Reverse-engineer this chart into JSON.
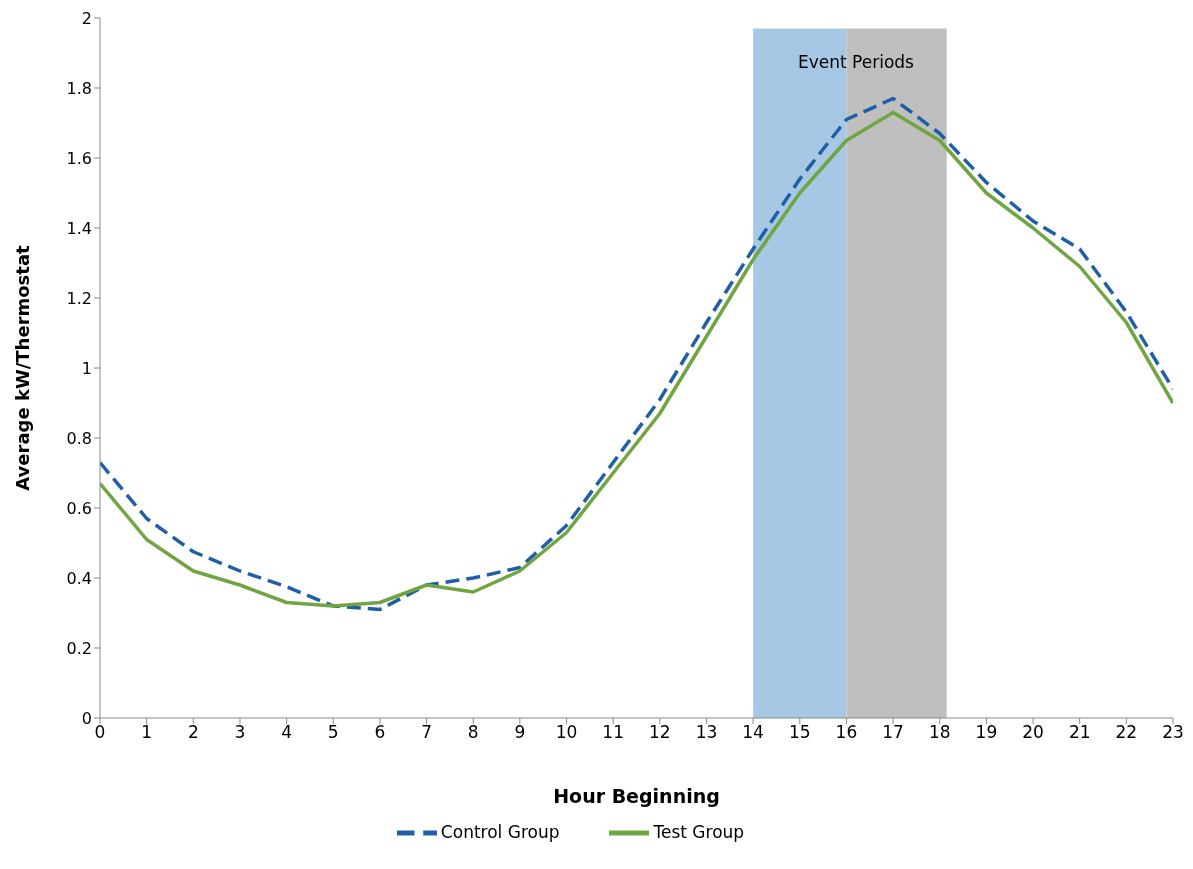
{
  "chart_data": {
    "type": "line",
    "xlabel": "Hour Beginning",
    "ylabel": "Average kW/Thermostat",
    "x": [
      0,
      1,
      2,
      3,
      4,
      5,
      6,
      7,
      8,
      9,
      10,
      11,
      12,
      13,
      14,
      15,
      16,
      17,
      18,
      19,
      20,
      21,
      22,
      23
    ],
    "series": [
      {
        "name": "Control Group",
        "color": "#1f5fa8",
        "line_style": "dashed",
        "values": [
          0.73,
          0.57,
          0.475,
          0.42,
          0.375,
          0.32,
          0.31,
          0.38,
          0.4,
          0.43,
          0.55,
          0.73,
          0.91,
          1.13,
          1.34,
          1.54,
          1.71,
          1.77,
          1.67,
          1.53,
          1.42,
          1.34,
          1.16,
          0.94
        ]
      },
      {
        "name": "Test Group",
        "color": "#70a542",
        "line_style": "solid",
        "values": [
          0.67,
          0.51,
          0.42,
          0.38,
          0.33,
          0.32,
          0.33,
          0.38,
          0.36,
          0.42,
          0.53,
          0.7,
          0.87,
          1.09,
          1.31,
          1.5,
          1.65,
          1.73,
          1.65,
          1.5,
          1.4,
          1.29,
          1.13,
          0.9
        ]
      }
    ],
    "bands": [
      {
        "axis": "x",
        "from": 14,
        "to": 16,
        "color": "#a6c8e4"
      },
      {
        "axis": "x",
        "from": 16,
        "to": 18.15,
        "color": "#bfbfbf"
      }
    ],
    "annotations": [
      "Event Periods"
    ],
    "xlim": [
      0,
      23
    ],
    "xticks": [
      0,
      1,
      2,
      3,
      4,
      5,
      6,
      7,
      8,
      9,
      10,
      11,
      12,
      13,
      14,
      15,
      16,
      17,
      18,
      19,
      20,
      21,
      22,
      23
    ],
    "ylim": [
      0,
      2
    ],
    "yticks": [
      0,
      0.2,
      0.4,
      0.6,
      0.8,
      1,
      1.2,
      1.4,
      1.6,
      1.8,
      2
    ],
    "grid": false,
    "legend": "bottom",
    "marker": "none"
  }
}
